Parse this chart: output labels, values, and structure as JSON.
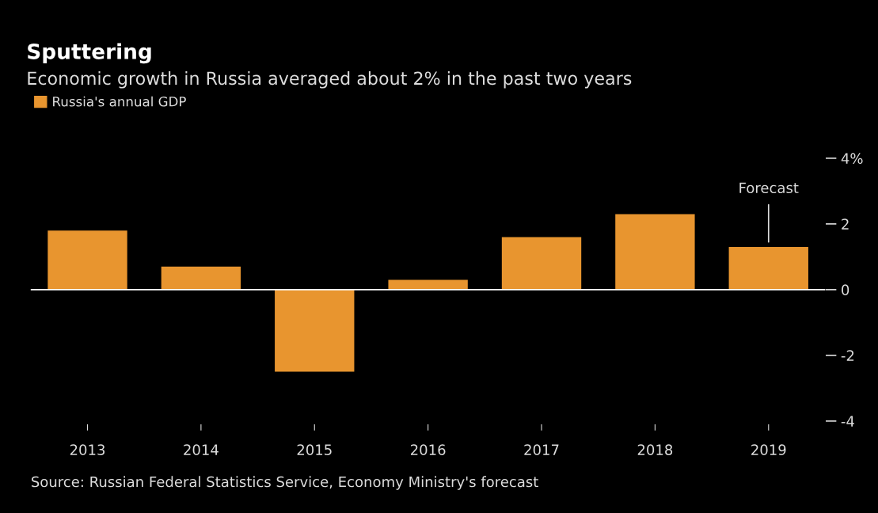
{
  "chart_data": {
    "type": "bar",
    "title": "Sputtering",
    "subtitle": "Economic growth in Russia averaged about 2% in the past two years",
    "categories": [
      "2013",
      "2014",
      "2015",
      "2016",
      "2017",
      "2018",
      "2019"
    ],
    "series": [
      {
        "name": "Russia's annual GDP",
        "color": "#e8952f",
        "values": [
          1.8,
          0.7,
          -2.5,
          0.3,
          1.6,
          2.3,
          1.3
        ]
      }
    ],
    "ylim": [
      -4.3,
      4.6
    ],
    "yticks": [
      {
        "value": 4,
        "label": "4%"
      },
      2,
      0,
      -2,
      -4
    ],
    "ref_lines": [
      {
        "axis": "y",
        "value": 0,
        "color": "#ffffff"
      }
    ],
    "annotations": [
      {
        "text": "Forecast",
        "x": "2019",
        "y": 1.3
      },
      "Source: Russian Federal Statistics Service, Economy Ministry's forecast"
    ],
    "grid": false,
    "legend": "top left"
  }
}
